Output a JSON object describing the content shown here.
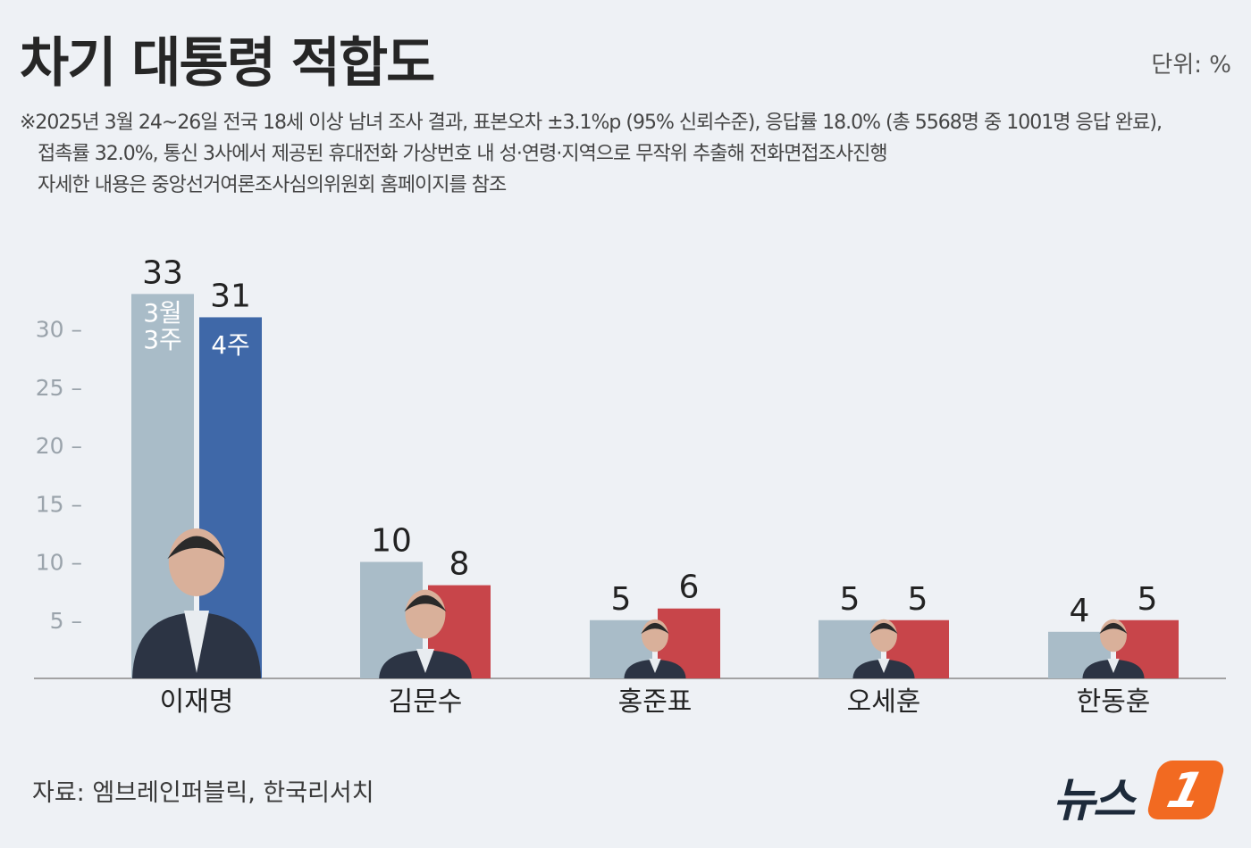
{
  "header": {
    "title": "차기 대통령 적합도",
    "unit": "단위: %"
  },
  "notes": [
    "※2025년 3월 24~26일 전국 18세 이상 남녀 조사 결과, 표본오차 ±3.1%p (95% 신뢰수준), 응답률 18.0% (총 5568명 중 1001명 응답 완료),",
    "접촉률 32.0%, 통신 3사에서 제공된 휴대전화 가상번호 내 성·연령·지역으로 무작위 추출해 전화면접조사진행",
    "자세한 내용은 중앙선거여론조사심의위원회 홈페이지를 참조"
  ],
  "source": "자료: 엠브레인퍼블릭, 한국리서치",
  "logo": {
    "text": "뉴스",
    "mark": "1"
  },
  "colors": {
    "series_prev": "#a9bcc8",
    "series_curr_first": "#3f68a8",
    "series_curr_others": "#c8454a",
    "axis": "#888888",
    "tick_text": "#9aa3ab"
  },
  "chart_data": {
    "type": "bar",
    "categories": [
      "이재명",
      "김문수",
      "홍준표",
      "오세훈",
      "한동훈"
    ],
    "series": [
      {
        "name": "3월 3주",
        "label_lines": [
          "3월",
          "3주"
        ],
        "values": [
          33,
          10,
          5,
          5,
          4
        ]
      },
      {
        "name": "4주",
        "label_lines": [
          "4주"
        ],
        "values": [
          31,
          8,
          6,
          5,
          5
        ]
      }
    ],
    "value_labels": [
      [
        "33",
        "10",
        "5",
        "5",
        "4"
      ],
      [
        "31",
        "8",
        "6",
        "5",
        "5"
      ]
    ],
    "y_ticks": [
      5,
      10,
      15,
      20,
      25,
      30
    ],
    "y_tick_labels": [
      "5 –",
      "10 –",
      "15 –",
      "20 –",
      "25 –",
      "30 –"
    ],
    "ylim": [
      0,
      35
    ],
    "grid": false,
    "legend": "in-bar labels",
    "portraits": "candidate photos overlaid at bar base"
  }
}
